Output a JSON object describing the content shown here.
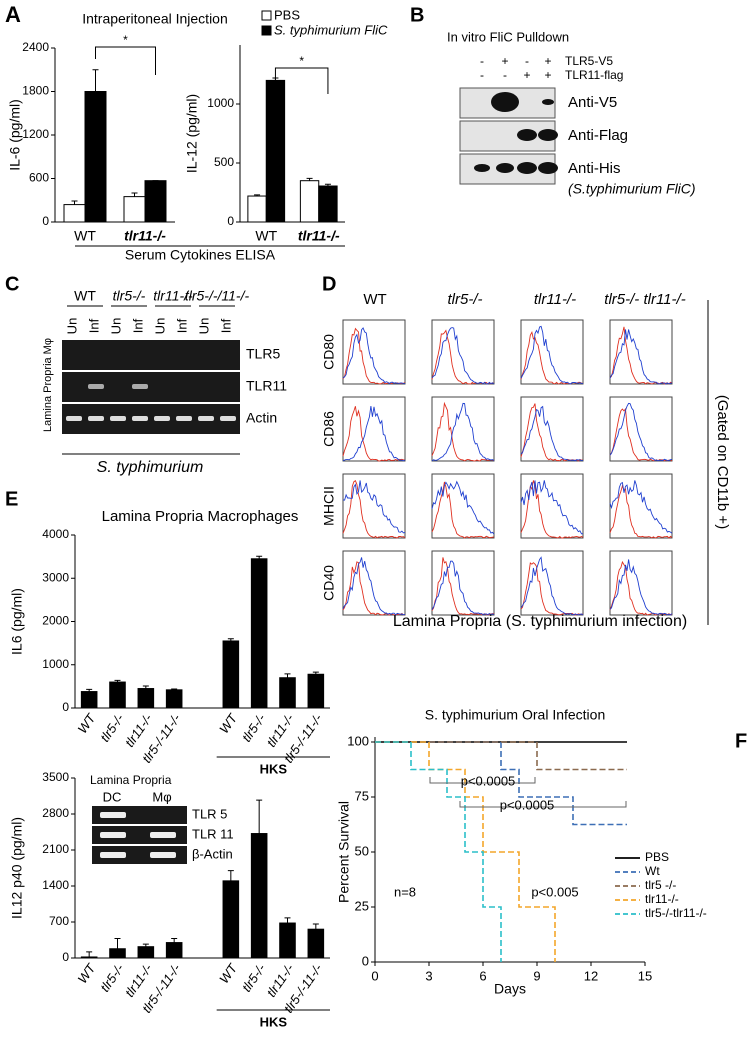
{
  "chart_data": [
    {
      "type": "bar",
      "panel": "A",
      "title": "Intraperitoneal Injection",
      "ylabel": "IL-6 (pg/ml)",
      "xlabel": "Serum Cytokines ELISA",
      "annotation": "*",
      "categories": [
        "WT",
        "tlr11-/-"
      ],
      "ylim": [
        0,
        2400
      ],
      "yticks": [
        0,
        600,
        1200,
        1800,
        2400
      ],
      "series": [
        {
          "color": "#ffffff",
          "values": [
            240,
            350
          ],
          "errors": [
            50,
            50
          ]
        },
        {
          "color": "#000000",
          "values": [
            1800,
            570
          ],
          "errors": [
            300,
            0
          ]
        }
      ]
    },
    {
      "type": "bar",
      "ylabel": "IL-12 (pg/ml)",
      "annotation": "*",
      "categories": [
        "WT",
        "tlr11-/-"
      ],
      "ylim": [
        0,
        1500
      ],
      "yticks": [
        0,
        500,
        1000
      ],
      "series": [
        {
          "name": "PBS",
          "color": "#ffffff",
          "values": [
            220,
            350
          ],
          "errors": [
            10,
            20
          ]
        },
        {
          "name": "S. typhimurium FliC",
          "color": "#000000",
          "values": [
            1200,
            305
          ],
          "errors": [
            20,
            15
          ]
        }
      ]
    },
    {
      "type": "bar",
      "panel": "E",
      "title": "Lamina Propria Macrophages",
      "ylabel": "IL6 (pg/ml)",
      "group_label": "HKS",
      "categories": [
        "WT",
        "tlr5-/-",
        "tlr11-/-",
        "tlr5-/-11-/-",
        "WT",
        "tlr5-/-",
        "tlr11-/-",
        "tlr5-/-11-/-"
      ],
      "ylim": [
        0,
        4000
      ],
      "yticks": [
        0,
        1000,
        2000,
        3000,
        4000
      ],
      "series": [
        {
          "color": "#000000",
          "values": [
            380,
            600,
            450,
            420,
            1550,
            3450,
            700,
            780
          ],
          "errors": [
            50,
            40,
            60,
            20,
            50,
            60,
            90,
            50
          ]
        }
      ]
    },
    {
      "type": "bar",
      "ylabel": "IL12 p40 (pg/ml)",
      "group_label": "HKS",
      "categories": [
        "WT",
        "tlr5-/-",
        "tlr11-/-",
        "tlr5-/-11-/-",
        "WT",
        "tlr5-/-",
        "tlr11-/-",
        "tlr5-/-11-/-"
      ],
      "ylim": [
        0,
        3500
      ],
      "yticks": [
        0,
        700,
        1400,
        2100,
        2800,
        3500
      ],
      "series": [
        {
          "color": "#000000",
          "values": [
            20,
            180,
            220,
            300,
            1500,
            2420,
            680,
            560
          ],
          "errors": [
            100,
            200,
            50,
            80,
            200,
            650,
            100,
            100
          ]
        }
      ],
      "inset": {
        "title": "Lamina Propria",
        "columns": [
          "DC",
          "Mφ"
        ],
        "rows": [
          "TLR 5",
          "TLR 11",
          "β-Actin"
        ]
      }
    },
    {
      "type": "line",
      "panel": "F",
      "title": "S. typhimurium Oral Infection",
      "xlabel": "Days",
      "ylabel": "Percent Survival",
      "xlim": [
        0,
        15
      ],
      "xticks": [
        0,
        3,
        6,
        9,
        12,
        15
      ],
      "ylim": [
        0,
        100
      ],
      "yticks": [
        0,
        25,
        50,
        75,
        100
      ],
      "annotations": [
        "p<0.0005",
        "p<0.0005",
        "p<0.005",
        "n=8"
      ],
      "series": [
        {
          "name": "PBS",
          "color": "#000000",
          "dashed": false,
          "x": [
            0,
            14
          ],
          "values": [
            100,
            100
          ]
        },
        {
          "name": "Wt",
          "color": "#3d6fb6",
          "dashed": true,
          "x": [
            0,
            7,
            7,
            8,
            8,
            11,
            11,
            14
          ],
          "values": [
            100,
            100,
            87.5,
            87.5,
            75,
            75,
            62.5,
            62.5
          ]
        },
        {
          "name": "tlr5 -/-",
          "color": "#8b6a4f",
          "dashed": true,
          "x": [
            0,
            9,
            9,
            14
          ],
          "values": [
            100,
            100,
            87.5,
            87.5
          ]
        },
        {
          "name": "tlr11-/-",
          "color": "#f4a62a",
          "dashed": true,
          "x": [
            0,
            3,
            3,
            5,
            5,
            6,
            6,
            8,
            8,
            10,
            10
          ],
          "values": [
            100,
            100,
            87.5,
            87.5,
            75,
            75,
            50,
            50,
            25,
            25,
            0
          ]
        },
        {
          "name": "tlr5-/-tlr11-/-",
          "color": "#2bbfc9",
          "dashed": true,
          "x": [
            0,
            2,
            2,
            4,
            4,
            5,
            5,
            6,
            6,
            7,
            7
          ],
          "values": [
            100,
            100,
            87.5,
            87.5,
            75,
            75,
            50,
            50,
            25,
            25,
            0
          ]
        }
      ]
    }
  ],
  "blot_b": {
    "panel": "B",
    "title": "In vitro FliC Pulldown",
    "conditions": [
      {
        "label": "TLR5-V5",
        "signs": [
          "-",
          "+",
          "-",
          "+"
        ]
      },
      {
        "label": "TLR11-flag",
        "signs": [
          "-",
          "-",
          "+",
          "+"
        ]
      }
    ],
    "rows": [
      "Anti-V5",
      "Anti-Flag",
      "Anti-His"
    ],
    "note": "(S.typhimurium FliC)"
  },
  "gel_c": {
    "panel": "C",
    "groups": [
      "WT",
      "tlr5-/-",
      "tlr11-/-",
      "tlr5-/-/11-/-"
    ],
    "lanes": [
      "Un",
      "Inf",
      "Un",
      "Inf",
      "Un",
      "Inf",
      "Un",
      "Inf"
    ],
    "rows": [
      "TLR5",
      "TLR11",
      "Actin"
    ],
    "side_label": "Lamina Propria Mφ",
    "footer": "S. typhimurium"
  },
  "flow_d": {
    "panel": "D",
    "columns": [
      "WT",
      "tlr5-/-",
      "tlr11-/-",
      "tlr5-/- tlr11-/-"
    ],
    "rows": [
      "CD80",
      "CD86",
      "MHCII",
      "CD40"
    ],
    "side_label": "(Gated on CD11b +)",
    "footer": "Lamina Propria (S. typhimurium infection)"
  }
}
